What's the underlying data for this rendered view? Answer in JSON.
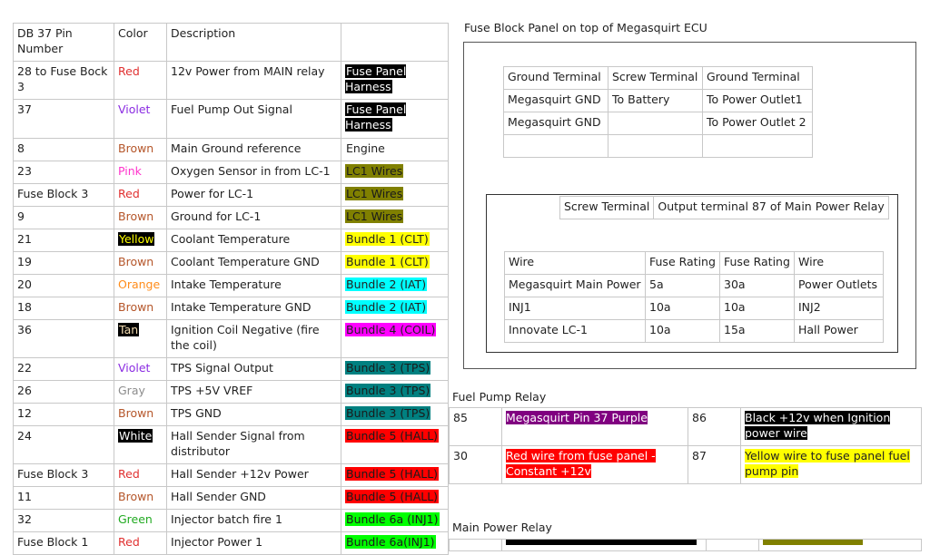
{
  "pin_table": {
    "headers": [
      "DB 37 Pin Number",
      "Color",
      "Description",
      ""
    ],
    "rows": [
      {
        "pin": "28 to Fuse Bock 3",
        "color": "Red",
        "color_hex": "#e03030",
        "color_bg": "",
        "desc": "12v Power from MAIN relay",
        "bundle": "Fuse Panel Harness",
        "bundle_bg": "#000000",
        "bundle_fg": "#ffffff"
      },
      {
        "pin": "37",
        "color": "Violet",
        "color_hex": "#8a2be2",
        "color_bg": "",
        "desc": "Fuel Pump Out Signal",
        "bundle": "Fuse Panel Harness",
        "bundle_bg": "#000000",
        "bundle_fg": "#ffffff"
      },
      {
        "pin": "8",
        "color": "Brown",
        "color_hex": "#b5562a",
        "color_bg": "",
        "desc": "Main Ground reference",
        "bundle": "Engine",
        "bundle_bg": "",
        "bundle_fg": "#222222"
      },
      {
        "pin": "23",
        "color": "Pink",
        "color_hex": "#ff33cc",
        "color_bg": "",
        "desc": "Oxygen Sensor in from LC-1",
        "bundle": "LC1 Wires",
        "bundle_bg": "#808000",
        "bundle_fg": "#1a1a1a"
      },
      {
        "pin": "Fuse Block 3",
        "color": "Red",
        "color_hex": "#e03030",
        "color_bg": "",
        "desc": "Power for LC-1",
        "bundle": "LC1 Wires",
        "bundle_bg": "#808000",
        "bundle_fg": "#1a1a1a"
      },
      {
        "pin": "9",
        "color": "Brown",
        "color_hex": "#b5562a",
        "color_bg": "",
        "desc": "Ground for LC-1",
        "bundle": "LC1 Wires",
        "bundle_bg": "#808000",
        "bundle_fg": "#1a1a1a"
      },
      {
        "pin": "21",
        "color": "Yellow",
        "color_hex": "#ffff00",
        "color_bg": "#000000",
        "desc": "Coolant Temperature",
        "bundle": "Bundle 1 (CLT)",
        "bundle_bg": "#ffff00",
        "bundle_fg": "#222222"
      },
      {
        "pin": "19",
        "color": "Brown",
        "color_hex": "#b5562a",
        "color_bg": "",
        "desc": "Coolant Temperature GND",
        "bundle": "Bundle 1 (CLT)",
        "bundle_bg": "#ffff00",
        "bundle_fg": "#222222"
      },
      {
        "pin": "20",
        "color": "Orange",
        "color_hex": "#ff8c1a",
        "color_bg": "",
        "desc": "Intake Temperature",
        "bundle": "Bundle 2 (IAT)",
        "bundle_bg": "#00ffff",
        "bundle_fg": "#222222"
      },
      {
        "pin": "18",
        "color": "Brown",
        "color_hex": "#b5562a",
        "color_bg": "",
        "desc": "Intake Temperature GND",
        "bundle": "Bundle 2 (IAT)",
        "bundle_bg": "#00ffff",
        "bundle_fg": "#222222"
      },
      {
        "pin": "36",
        "color": "Tan",
        "color_hex": "#f5deb3",
        "color_bg": "#000000",
        "desc": "Ignition Coil Negative (fire the coil)",
        "bundle": "Bundle 4 (COIL)",
        "bundle_bg": "#ff00ff",
        "bundle_fg": "#222222"
      },
      {
        "pin": "22",
        "color": "Violet",
        "color_hex": "#8a2be2",
        "color_bg": "",
        "desc": "TPS Signal Output",
        "bundle": "Bundle 3 (TPS)",
        "bundle_bg": "#008080",
        "bundle_fg": "#1a1a1a"
      },
      {
        "pin": "26",
        "color": "Gray",
        "color_hex": "#8c8c8c",
        "color_bg": "",
        "desc": "TPS +5V VREF",
        "bundle": "Bundle 3 (TPS)",
        "bundle_bg": "#008080",
        "bundle_fg": "#1a1a1a"
      },
      {
        "pin": "12",
        "color": "Brown",
        "color_hex": "#b5562a",
        "color_bg": "",
        "desc": "TPS GND",
        "bundle": "Bundle 3 (TPS)",
        "bundle_bg": "#008080",
        "bundle_fg": "#1a1a1a"
      },
      {
        "pin": "24",
        "color": "White",
        "color_hex": "#ffffff",
        "color_bg": "#000000",
        "desc": "Hall Sender Signal from distributor",
        "bundle": "Bundle 5 (HALL)",
        "bundle_bg": "#ff0000",
        "bundle_fg": "#1a1a1a"
      },
      {
        "pin": "Fuse Block 3",
        "color": "Red",
        "color_hex": "#e03030",
        "color_bg": "",
        "desc": "Hall Sender +12v Power",
        "bundle": "Bundle 5 (HALL)",
        "bundle_bg": "#ff0000",
        "bundle_fg": "#1a1a1a"
      },
      {
        "pin": "11",
        "color": "Brown",
        "color_hex": "#b5562a",
        "color_bg": "",
        "desc": "Hall Sender GND",
        "bundle": "Bundle 5 (HALL)",
        "bundle_bg": "#ff0000",
        "bundle_fg": "#1a1a1a"
      },
      {
        "pin": "32",
        "color": "Green",
        "color_hex": "#22aa22",
        "color_bg": "",
        "desc": "Injector batch fire 1",
        "bundle": "Bundle 6a (INJ1)",
        "bundle_bg": "#00ff00",
        "bundle_fg": "#1a1a1a"
      },
      {
        "pin": "Fuse Block 1",
        "color": "Red",
        "color_hex": "#e03030",
        "color_bg": "",
        "desc": "Injector Power 1",
        "bundle": "Bundle 6a(INJ1)",
        "bundle_bg": "#00ff00",
        "bundle_fg": "#1a1a1a"
      }
    ]
  },
  "fuse_panel": {
    "title": "Fuse Block Panel on top of Megasquirt ECU",
    "terminal_table": [
      [
        "Ground Terminal",
        "Screw Terminal",
        "Ground Terminal"
      ],
      [
        "Megasquirt GND",
        "To Battery",
        "To Power Outlet1"
      ],
      [
        "Megasquirt GND",
        "",
        "To Power Outlet 2"
      ],
      [
        "",
        "",
        ""
      ]
    ],
    "relay_header": [
      "Screw Terminal",
      "Output terminal 87 of Main Power Relay"
    ],
    "fuse_table": [
      [
        "Wire",
        "Fuse Rating",
        "Fuse Rating",
        "Wire"
      ],
      [
        "Megasquirt Main Power",
        "5a",
        "30a",
        "Power Outlets"
      ],
      [
        "INJ1",
        "10a",
        "10a",
        "INJ2"
      ],
      [
        "Innovate LC-1",
        "10a",
        "15a",
        "Hall Power"
      ]
    ]
  },
  "fuel_pump_relay": {
    "title": "Fuel Pump Relay",
    "rows": [
      {
        "pin_a": "85",
        "text_a": "Megasquirt Pin 37 Purple",
        "bg_a": "#800080",
        "fg_a": "#ffffff",
        "pin_b": "86",
        "text_b": "Black +12v when Ignition power wire",
        "bg_b": "#000000",
        "fg_b": "#ffffff"
      },
      {
        "pin_a": "30",
        "text_a": "Red wire from fuse panel - Constant +12v",
        "bg_a": "#ff0000",
        "fg_a": "#ffffff",
        "pin_b": "87",
        "text_b": "Yellow wire to fuse panel fuel pump pin",
        "bg_b": "#ffff00",
        "fg_b": "#222222"
      }
    ]
  },
  "main_power_relay": {
    "title": "Main Power Relay",
    "bar_colors": [
      "#000000",
      "#808000"
    ]
  }
}
